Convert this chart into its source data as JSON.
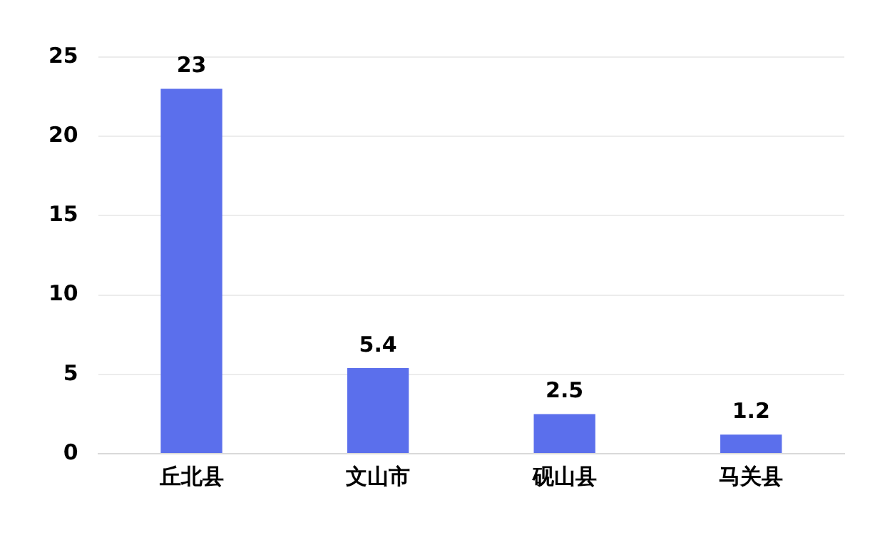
{
  "chart_data": {
    "type": "bar",
    "categories": [
      "丘北县",
      "文山市",
      "砚山县",
      "马关县"
    ],
    "values": [
      23,
      5.4,
      2.5,
      1.2
    ],
    "color": "#5b6fec",
    "ylim": [
      0,
      25
    ],
    "yticks": [
      0,
      5,
      10,
      15,
      20,
      25
    ],
    "grid": "y",
    "data_labels": true,
    "legend": false
  }
}
